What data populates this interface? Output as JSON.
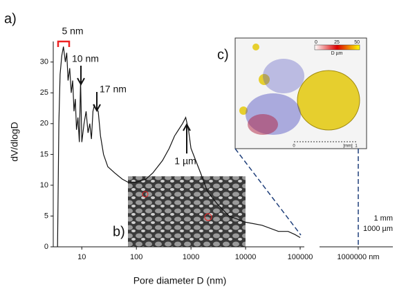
{
  "chart_data": {
    "type": "line",
    "x_label": "Pore diameter D (nm)",
    "y_label": "dV/dlogD",
    "x_log": true,
    "color": "#111111",
    "x": [
      3.6,
      3.8,
      4,
      4.3,
      4.6,
      5,
      5.3,
      5.6,
      6,
      6.4,
      6.8,
      7.2,
      7.6,
      8,
      8.5,
      9,
      9.5,
      10,
      11,
      12,
      13,
      14,
      15,
      16,
      17,
      18,
      20,
      22,
      25,
      30,
      40,
      55,
      70,
      100,
      150,
      200,
      300,
      400,
      500,
      700,
      800,
      900,
      1000,
      1500,
      2000,
      3000,
      5000,
      10000,
      20000,
      40000,
      60000,
      80000,
      100000
    ],
    "values": [
      0,
      20,
      28,
      31,
      32.5,
      30,
      31.5,
      27,
      29,
      25,
      27,
      22,
      24,
      19,
      21,
      17,
      27,
      17,
      20,
      22,
      18.5,
      20,
      17.5,
      22,
      23,
      22.5,
      22,
      18,
      15,
      13,
      12,
      11,
      10.5,
      10.5,
      11,
      12,
      14,
      16,
      18,
      20,
      21,
      19,
      16,
      12,
      9,
      7,
      5,
      4,
      3.5,
      2.5,
      2.5,
      2,
      1.5
    ],
    "xlim": [
      3,
      100000
    ],
    "xticks": [
      10,
      100,
      1000,
      10000,
      100000,
      {
        "value": 1000000,
        "label": "1000000 nm"
      }
    ],
    "ylim": [
      0,
      33
    ],
    "yticks": [
      0,
      5,
      10,
      15,
      20,
      25,
      30
    ],
    "panels": [
      "a)",
      "b)",
      "c)"
    ],
    "peak_labels": [
      "5 nm",
      "10 nm",
      "17 nm",
      "1 µm"
    ],
    "scale_note": [
      "1 mm",
      "1000 µm"
    ],
    "inset_c": {
      "colorbar": [
        "0",
        "25",
        "50",
        "D µm"
      ],
      "scalebar": [
        "0",
        "[mm]",
        "1"
      ]
    }
  }
}
